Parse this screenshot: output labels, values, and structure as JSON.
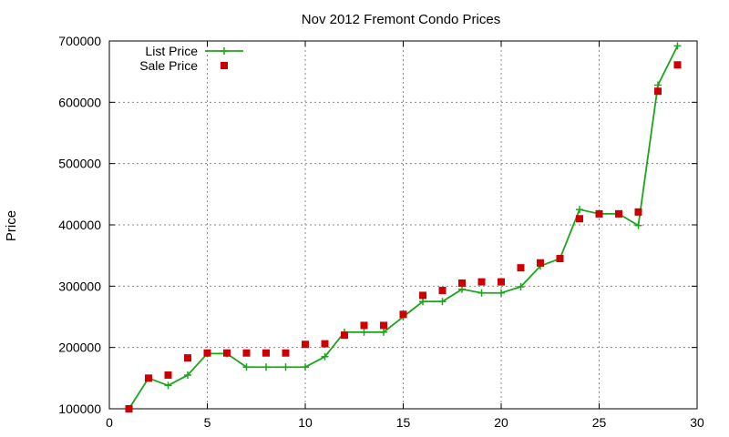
{
  "chart_data": {
    "type": "line",
    "title": "Nov 2012 Fremont Condo Prices",
    "xlabel": "",
    "ylabel": "Price",
    "xlim": [
      0,
      30
    ],
    "ylim": [
      100000,
      700000
    ],
    "xticks": [
      0,
      5,
      10,
      15,
      20,
      25,
      30
    ],
    "yticks": [
      100000,
      200000,
      300000,
      400000,
      500000,
      600000,
      700000
    ],
    "grid": true,
    "legend_position": "top-left",
    "series": [
      {
        "name": "List Price",
        "style": "line-with-plus-markers",
        "color": "#1aa61a",
        "x": [
          1,
          2,
          3,
          4,
          5,
          6,
          7,
          8,
          9,
          10,
          11,
          12,
          13,
          14,
          15,
          16,
          17,
          18,
          19,
          20,
          21,
          22,
          23,
          24,
          25,
          26,
          27,
          28,
          29
        ],
        "y": [
          100000,
          150000,
          138000,
          155000,
          190000,
          190000,
          168000,
          168000,
          168000,
          168000,
          185000,
          225000,
          225000,
          225000,
          250000,
          275000,
          275000,
          295000,
          289000,
          289000,
          299000,
          333000,
          345000,
          425000,
          418000,
          418000,
          399000,
          628000,
          692000
        ]
      },
      {
        "name": "Sale Price",
        "style": "square-markers",
        "color": "#cc0000",
        "x": [
          1,
          2,
          3,
          4,
          5,
          6,
          7,
          8,
          9,
          10,
          11,
          12,
          13,
          14,
          15,
          16,
          17,
          18,
          19,
          20,
          21,
          22,
          23,
          24,
          25,
          26,
          27,
          28,
          29
        ],
        "y": [
          100000,
          150000,
          155000,
          183000,
          191000,
          191000,
          191000,
          191000,
          191000,
          205000,
          206000,
          220000,
          236000,
          236000,
          254000,
          285000,
          293000,
          305000,
          307000,
          307000,
          330000,
          338000,
          345000,
          410000,
          418000,
          418000,
          421000,
          618000,
          661000
        ]
      }
    ]
  }
}
